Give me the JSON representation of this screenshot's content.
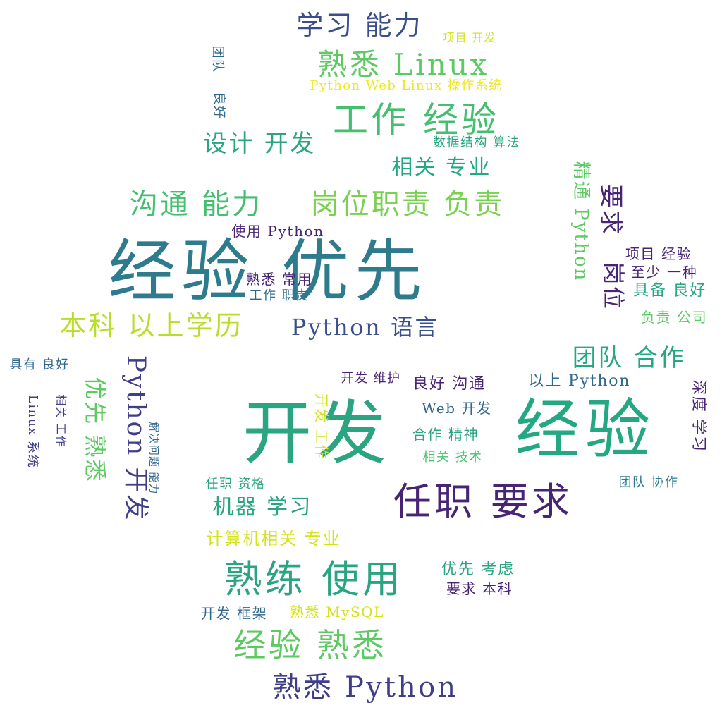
{
  "words": {
    "w01": "经验 优先",
    "w02": "开发",
    "w03": "经验",
    "w04": "任职 要求",
    "w05": "熟练 使用",
    "w06": "经验 熟悉",
    "w07": "熟悉 Python",
    "w08": "本科 以上学历",
    "w09": "Python 语言",
    "w10": "岗位职责 负责",
    "w11": "沟通 能力",
    "w12": "工作 经验",
    "w13": "熟悉 Linux",
    "w14": "学习 能力",
    "w15": "设计 开发",
    "w16": "相关 专业",
    "w17": "团队 合作",
    "w18": "Python 开发",
    "w19": "优先 熟悉",
    "w20": "机器 学习",
    "w21": "计算机相关 专业",
    "w22": "Python Web Linux 操作系统",
    "w23": "数据结构 算法",
    "w24": "项目 开发",
    "w25": "使用 Python",
    "w26": "熟悉 常用",
    "w27": "工作 职责",
    "w28": "要求",
    "w29": "精通 Python",
    "w30": "岗位",
    "w31": "项目 经验",
    "w32": "至少 一种",
    "w33": "具备 良好",
    "w34": "负责 公司",
    "w35": "开发 维护",
    "w36": "良好 沟通",
    "w37": "以上 Python",
    "w38": "Web 开发",
    "w39": "合作 精神",
    "w40": "相关 技术",
    "w41": "团队 协作",
    "w42": "深度 学习",
    "w43": "任职 资格",
    "w44": "开发 工作",
    "w45": "解决问题 能力",
    "w46": "优先 考虑",
    "w47": "要求 本科",
    "w48": "开发 框架",
    "w49": "熟悉 MySQL",
    "w50": "具有 良好",
    "w51": "Linux 系统",
    "w52": "相关 工作",
    "w53": "团队",
    "w54": "良好"
  }
}
